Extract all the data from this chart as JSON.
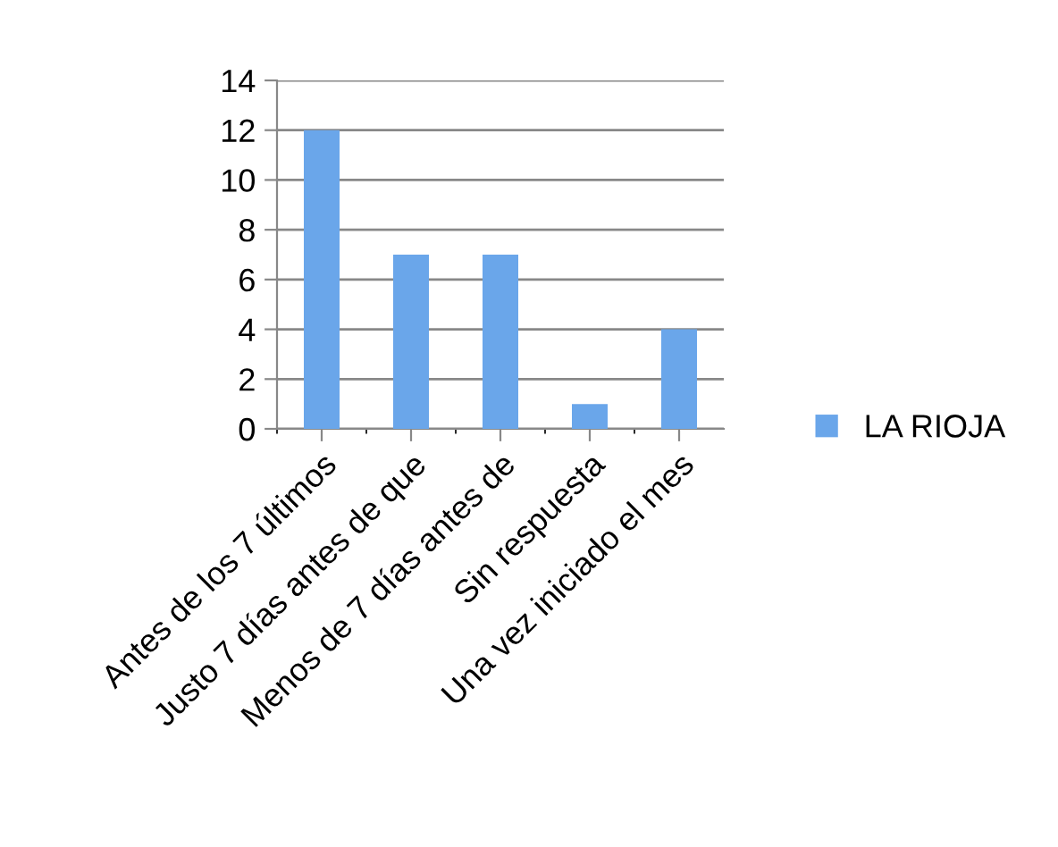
{
  "chart_data": {
    "type": "bar",
    "categories": [
      "Antes de los 7 últimos",
      "Justo 7 días antes de que",
      "Menos de 7 días antes de",
      "Sin respuesta",
      "Una vez iniciado el mes"
    ],
    "series": [
      {
        "name": "LA RIOJA",
        "color": "#6aa6ea",
        "values": [
          12,
          7,
          7,
          1,
          4
        ]
      }
    ],
    "ylim": [
      0,
      14
    ],
    "yticks": [
      0,
      2,
      4,
      6,
      8,
      10,
      12,
      14
    ],
    "grid": "y",
    "legend": "right"
  }
}
